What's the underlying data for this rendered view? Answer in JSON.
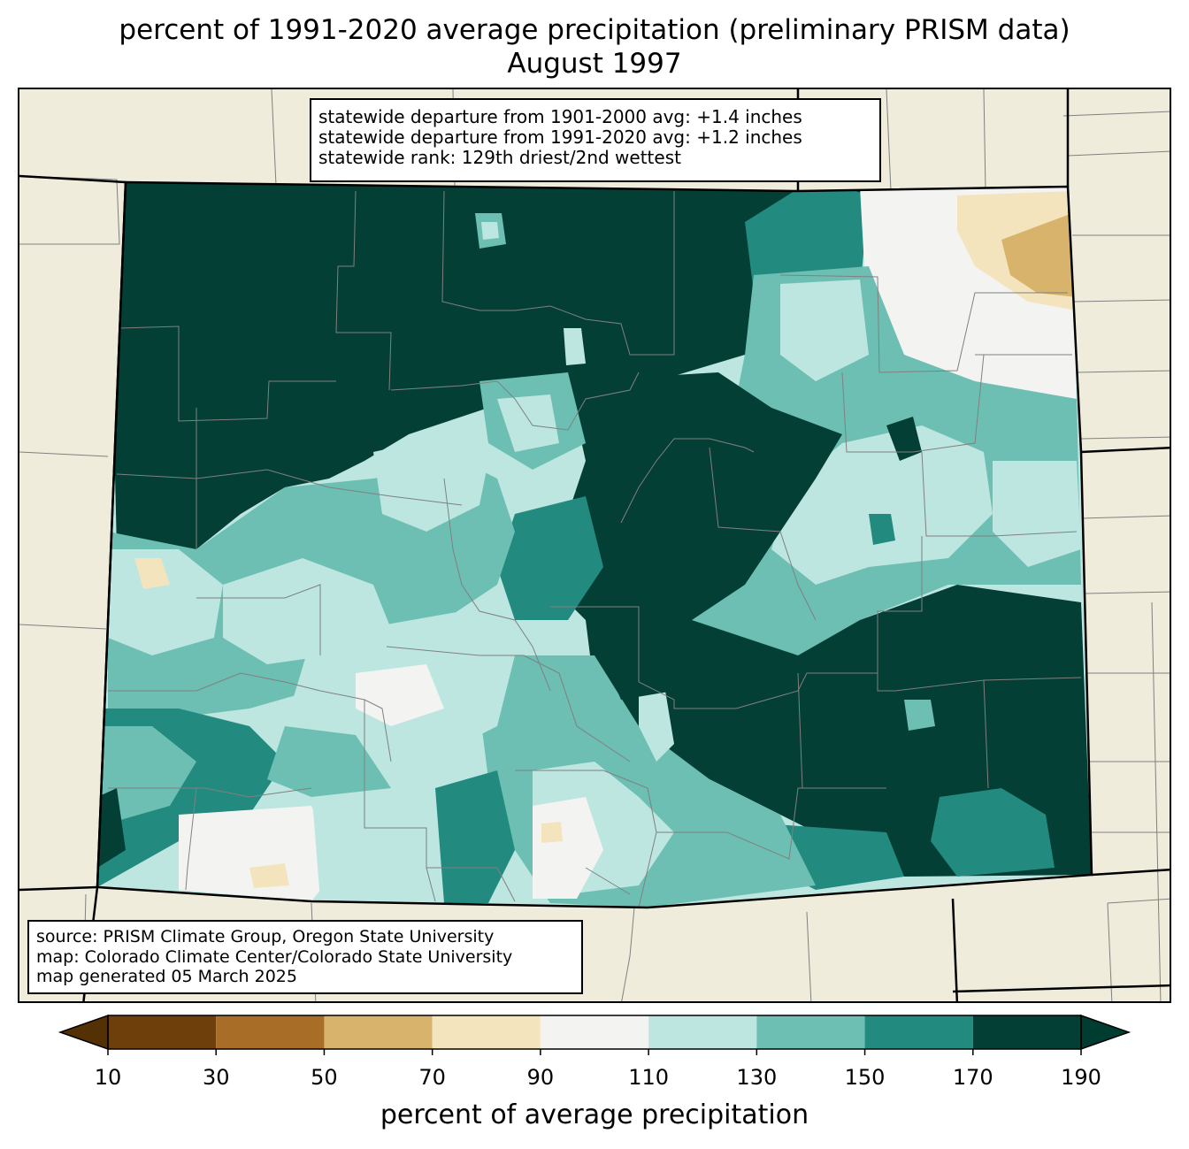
{
  "title": {
    "line1": "percent of 1991-2020 average precipitation (preliminary PRISM data)",
    "line2": "August 1997"
  },
  "stats": {
    "line1": "statewide departure from 1901-2000 avg: +1.4 inches",
    "line2": "statewide departure from 1991-2020 avg: +1.2 inches",
    "line3": "statewide rank: 129th driest/2nd wettest"
  },
  "source": {
    "line1": "source: PRISM Climate Group, Oregon State University",
    "line2": "map: Colorado Climate Center/Colorado State University",
    "line3": "map generated 05 March 2025"
  },
  "colorbar": {
    "label": "percent of average precipitation",
    "ticks": [
      "10",
      "30",
      "50",
      "70",
      "90",
      "110",
      "130",
      "150",
      "170",
      "190"
    ],
    "bins": [
      {
        "from": 10,
        "to": 30,
        "color": "#6e3f0b"
      },
      {
        "from": 30,
        "to": 50,
        "color": "#a86d27"
      },
      {
        "from": 50,
        "to": 70,
        "color": "#d8b36c"
      },
      {
        "from": 70,
        "to": 90,
        "color": "#f4e4bd"
      },
      {
        "from": 90,
        "to": 110,
        "color": "#f3f4f2"
      },
      {
        "from": 110,
        "to": 130,
        "color": "#bde6e1"
      },
      {
        "from": 130,
        "to": 150,
        "color": "#6cbfb2"
      },
      {
        "from": 150,
        "to": 170,
        "color": "#238a80"
      },
      {
        "from": 170,
        "to": 190,
        "color": "#033f34"
      }
    ],
    "under_color": "#543005",
    "over_color": "#003c30"
  },
  "colors": {
    "land_background": "#efecdb",
    "county_lines": "#808080",
    "state_borders": "#000000"
  }
}
